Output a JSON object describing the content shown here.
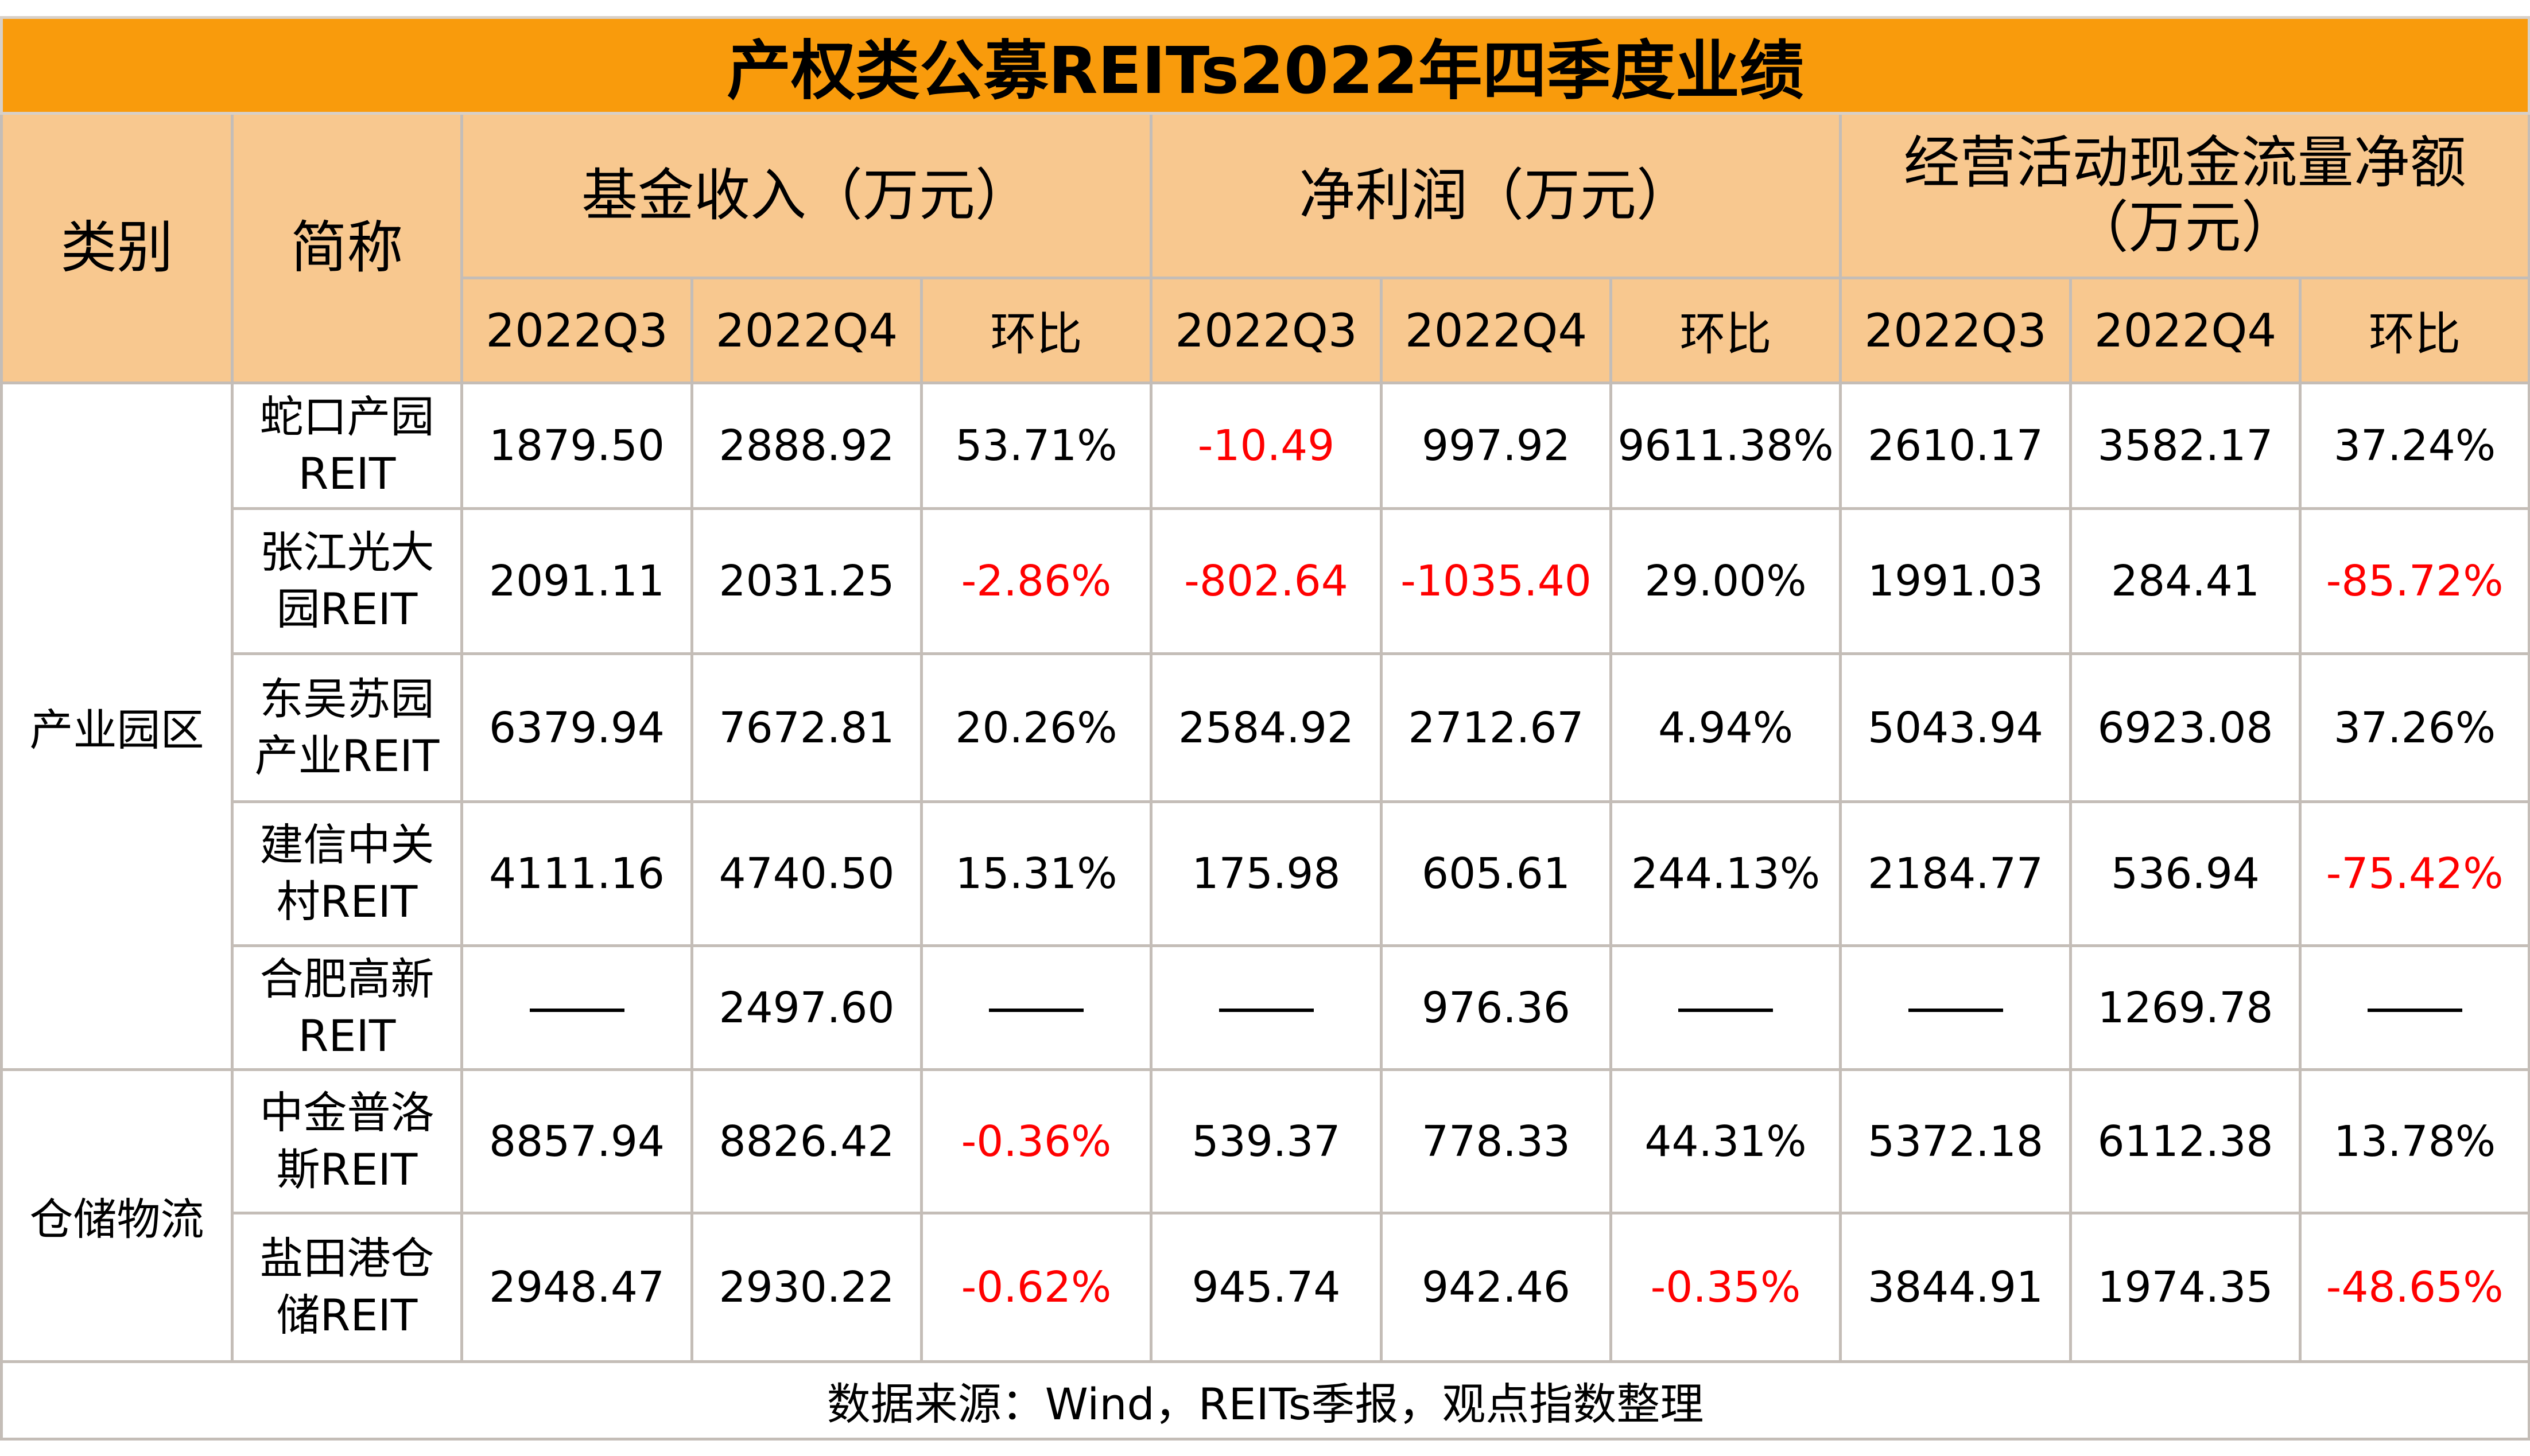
{
  "title": "产权类公募REITs2022年四季度业绩",
  "headers": {
    "category": "类别",
    "short_name": "简称",
    "groups": [
      "基金收入（万元）",
      "净利润（万元）",
      "经营活动现金流量净额（万元）"
    ],
    "sub": [
      "2022Q3",
      "2022Q4",
      "环比"
    ]
  },
  "colors": {
    "title_bg": "#F99B0C",
    "header_bg": "#F8C88F",
    "negative": "#FF0000"
  },
  "groups": [
    {
      "category": "产业园区",
      "rows": [
        {
          "name": "蛇口产园REIT",
          "values": [
            "1879.50",
            "2888.92",
            "53.71%",
            "-10.49",
            "997.92",
            "9611.38%",
            "2610.17",
            "3582.17",
            "37.24%"
          ]
        },
        {
          "name": "张江光大园REIT",
          "values": [
            "2091.11",
            "2031.25",
            "-2.86%",
            "-802.64",
            "-1035.40",
            "29.00%",
            "1991.03",
            "284.41",
            "-85.72%"
          ]
        },
        {
          "name": "东吴苏园产业REIT",
          "values": [
            "6379.94",
            "7672.81",
            "20.26%",
            "2584.92",
            "2712.67",
            "4.94%",
            "5043.94",
            "6923.08",
            "37.26%"
          ]
        },
        {
          "name": "建信中关村REIT",
          "values": [
            "4111.16",
            "4740.50",
            "15.31%",
            "175.98",
            "605.61",
            "244.13%",
            "2184.77",
            "536.94",
            "-75.42%"
          ]
        },
        {
          "name": "合肥高新REIT",
          "values": [
            "——",
            "2497.60",
            "——",
            "——",
            "976.36",
            "——",
            "——",
            "1269.78",
            "——"
          ]
        }
      ]
    },
    {
      "category": "仓储物流",
      "rows": [
        {
          "name": "中金普洛斯REIT",
          "values": [
            "8857.94",
            "8826.42",
            "-0.36%",
            "539.37",
            "778.33",
            "44.31%",
            "5372.18",
            "6112.38",
            "13.78%"
          ]
        },
        {
          "name": "盐田港仓储REIT",
          "values": [
            "2948.47",
            "2930.22",
            "-0.62%",
            "945.74",
            "942.46",
            "-0.35%",
            "3844.91",
            "1974.35",
            "-48.65%"
          ]
        }
      ]
    }
  ],
  "source": "数据来源：Wind，REITs季报，观点指数整理"
}
